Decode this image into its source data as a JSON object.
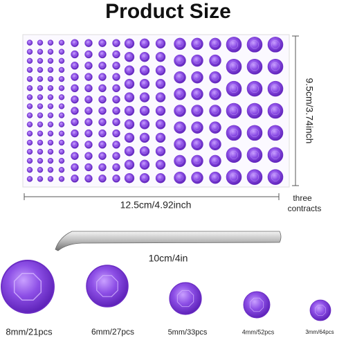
{
  "title": "Product Size",
  "sheet": {
    "height_label": "9.5cm/3.74inch",
    "width_label": "12.5cm/4.92inch",
    "note": [
      "three",
      "contracts"
    ]
  },
  "tweezers": {
    "label": "10cm/4in"
  },
  "gems": [
    {
      "label": "8mm/21pcs"
    },
    {
      "label": "6mm/27pcs"
    },
    {
      "label": "5mm/33pcs"
    },
    {
      "label": "4mm/52pcs"
    },
    {
      "label": "3mm/64pcs"
    }
  ]
}
